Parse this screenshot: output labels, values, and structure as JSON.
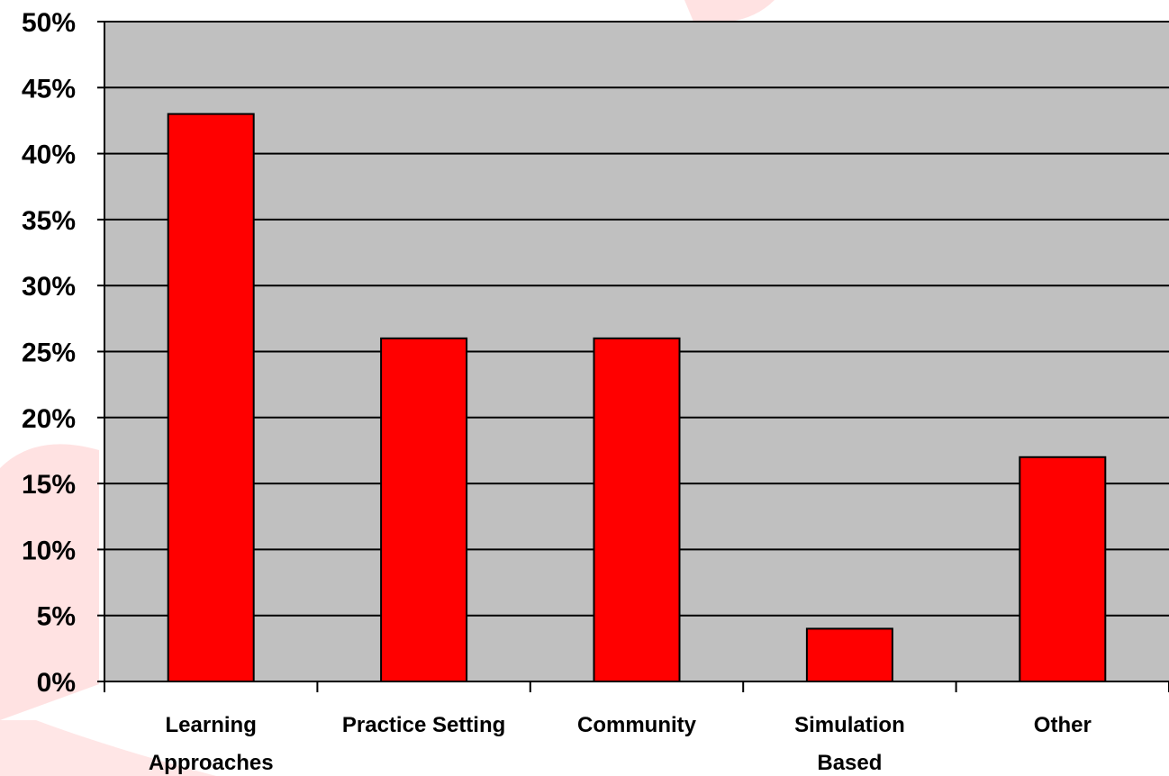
{
  "chart_data": {
    "type": "bar",
    "title": "",
    "xlabel": "",
    "ylabel": "",
    "categories": [
      [
        "Learning",
        "Approaches"
      ],
      [
        "Practice Setting"
      ],
      [
        "Community"
      ],
      [
        "Simulation",
        "Based"
      ],
      [
        "Other"
      ]
    ],
    "values": [
      43,
      26,
      26,
      4,
      17
    ],
    "ylim": [
      0,
      50
    ],
    "y_ticks": [
      "0%",
      "5%",
      "10%",
      "15%",
      "20%",
      "25%",
      "30%",
      "35%",
      "40%",
      "45%",
      "50%"
    ],
    "grid": true,
    "legend": "none",
    "colors": {
      "bar": "#ff0000",
      "plot_background": "#c0c0c0",
      "decoration": "#ffd6d6"
    }
  }
}
